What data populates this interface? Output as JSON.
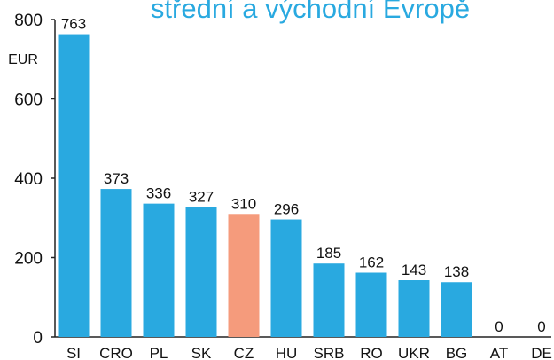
{
  "chart_data": {
    "type": "bar",
    "title": "střední a východní Evropě",
    "y_label": "EUR",
    "categories": [
      "SI",
      "CRO",
      "PL",
      "SK",
      "CZ",
      "HU",
      "SRB",
      "RO",
      "UKR",
      "BG",
      "AT",
      "DE"
    ],
    "values": [
      763,
      373,
      336,
      327,
      310,
      296,
      185,
      162,
      143,
      138,
      0,
      0
    ],
    "colors": [
      "#29a9e0",
      "#29a9e0",
      "#29a9e0",
      "#29a9e0",
      "#f59b7c",
      "#29a9e0",
      "#29a9e0",
      "#29a9e0",
      "#29a9e0",
      "#29a9e0",
      "#29a9e0",
      "#29a9e0"
    ],
    "ylim": [
      0,
      800
    ],
    "yticks": [
      0,
      200,
      400,
      600,
      800
    ],
    "grid": false
  }
}
